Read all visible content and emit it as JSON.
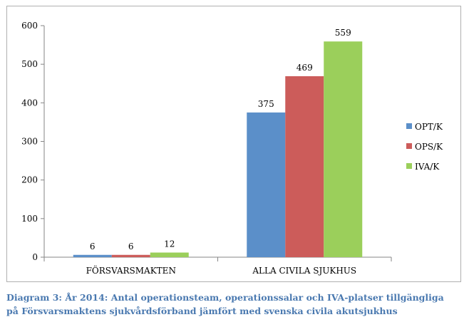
{
  "chart_data": {
    "type": "bar",
    "categories": [
      "FÖRSVARSMAKTEN",
      "ALLA CIVILA SJUKHUS"
    ],
    "series": [
      {
        "name": "OPT/K",
        "values": [
          6,
          375
        ],
        "color": "#5b8fc9"
      },
      {
        "name": "OPS/K",
        "values": [
          6,
          469
        ],
        "color": "#cc5c5a"
      },
      {
        "name": "IVA/K",
        "values": [
          12,
          559
        ],
        "color": "#9bcf5b"
      }
    ],
    "ylim": [
      0,
      600
    ],
    "yticks": [
      0,
      100,
      200,
      300,
      400,
      500,
      600
    ],
    "grid": false,
    "legend_position": "right"
  },
  "caption": {
    "line1": "Diagram 3: År 2014: Antal operationsteam, operationssalar och IVA-platser tillgängliga",
    "line2": "på Försvarsmaktens sjukvårdsförband jämfört med svenska civila akutsjukhus"
  }
}
